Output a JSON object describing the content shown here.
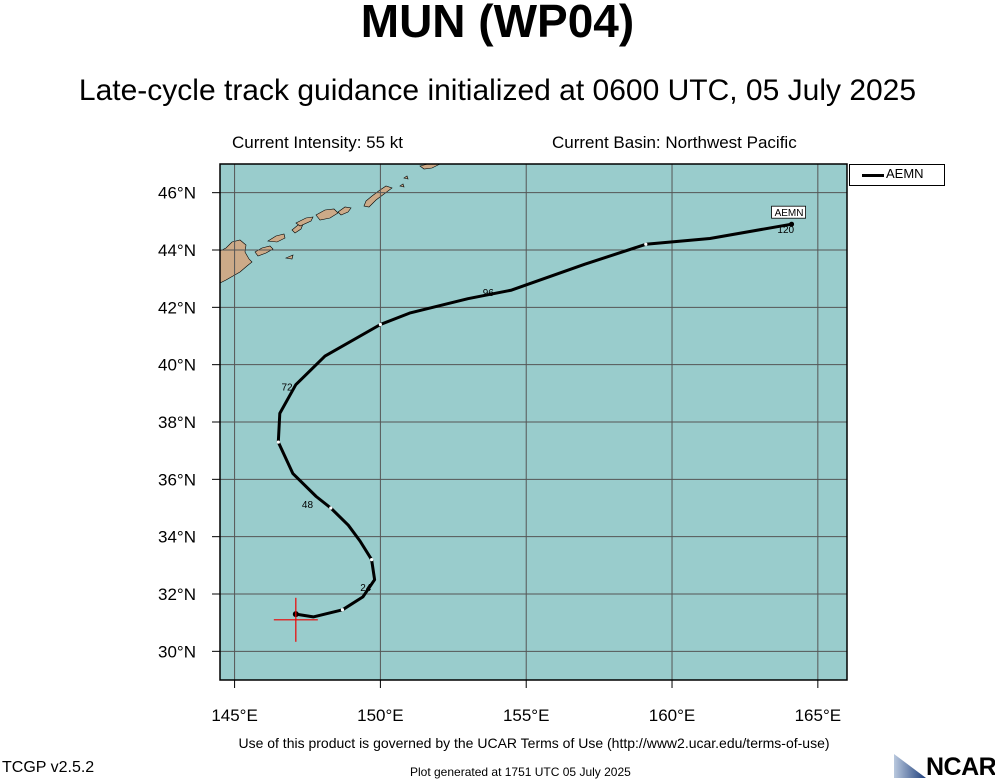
{
  "title": "MUN (WP04)",
  "subtitle": "Late-cycle track guidance initialized at 0600 UTC, 05 July 2025",
  "current_intensity": "Current Intensity: 55 kt",
  "current_basin": "Current Basin: Northwest Pacific",
  "legend": {
    "label": "AEMN"
  },
  "colors": {
    "ocean": "#99cccc",
    "land": "#ccaa88",
    "track": "#000000",
    "current_position": "#ee0000",
    "grid": "#555555"
  },
  "chart_data": {
    "type": "line",
    "xlim": [
      144.5,
      166
    ],
    "ylim": [
      29,
      47
    ],
    "x_ticks": [
      145,
      150,
      155,
      160,
      165
    ],
    "x_tick_labels": [
      "145°E",
      "150°E",
      "155°E",
      "160°E",
      "165°E"
    ],
    "y_ticks": [
      30,
      32,
      34,
      36,
      38,
      40,
      42,
      44,
      46
    ],
    "y_tick_labels": [
      "30°N",
      "32°N",
      "34°N",
      "36°N",
      "38°N",
      "40°N",
      "42°N",
      "44°N",
      "46°N"
    ],
    "grid": true,
    "current_position": {
      "lon": 147.1,
      "lat": 31.1
    },
    "series": [
      {
        "name": "AEMN",
        "lon": [
          147.1,
          147.7,
          148.7,
          149.4,
          149.8,
          149.7,
          149.3,
          148.9,
          148.3,
          147.8,
          147.0,
          146.5,
          146.55,
          147.1,
          148.1,
          150.0,
          151.0,
          153.0,
          154.5,
          157.0,
          159.1,
          161.3,
          164.1
        ],
        "lat": [
          31.3,
          31.2,
          31.45,
          31.9,
          32.5,
          33.2,
          33.85,
          34.4,
          35.0,
          35.4,
          36.2,
          37.3,
          38.3,
          39.3,
          40.3,
          41.4,
          41.8,
          42.3,
          42.6,
          43.5,
          44.2,
          44.4,
          44.9
        ],
        "hour_labels": [
          {
            "text": "24",
            "lon": 149.5,
            "lat": 32.1
          },
          {
            "text": "48",
            "lon": 147.5,
            "lat": 35.0
          },
          {
            "text": "72",
            "lon": 146.8,
            "lat": 39.1
          },
          {
            "text": "96",
            "lon": 153.7,
            "lat": 42.4
          },
          {
            "text": "120",
            "lon": 163.9,
            "lat": 44.6
          }
        ],
        "end_label": "AEMN"
      }
    ]
  },
  "terms_text": "Use of this product is governed by the UCAR Terms of Use (http://www2.ucar.edu/terms-of-use)",
  "footer_left": "TCGP v2.5.2",
  "footer_generated": "Plot generated at 1751 UTC   05 July 2025",
  "logo_text": "NCAR"
}
